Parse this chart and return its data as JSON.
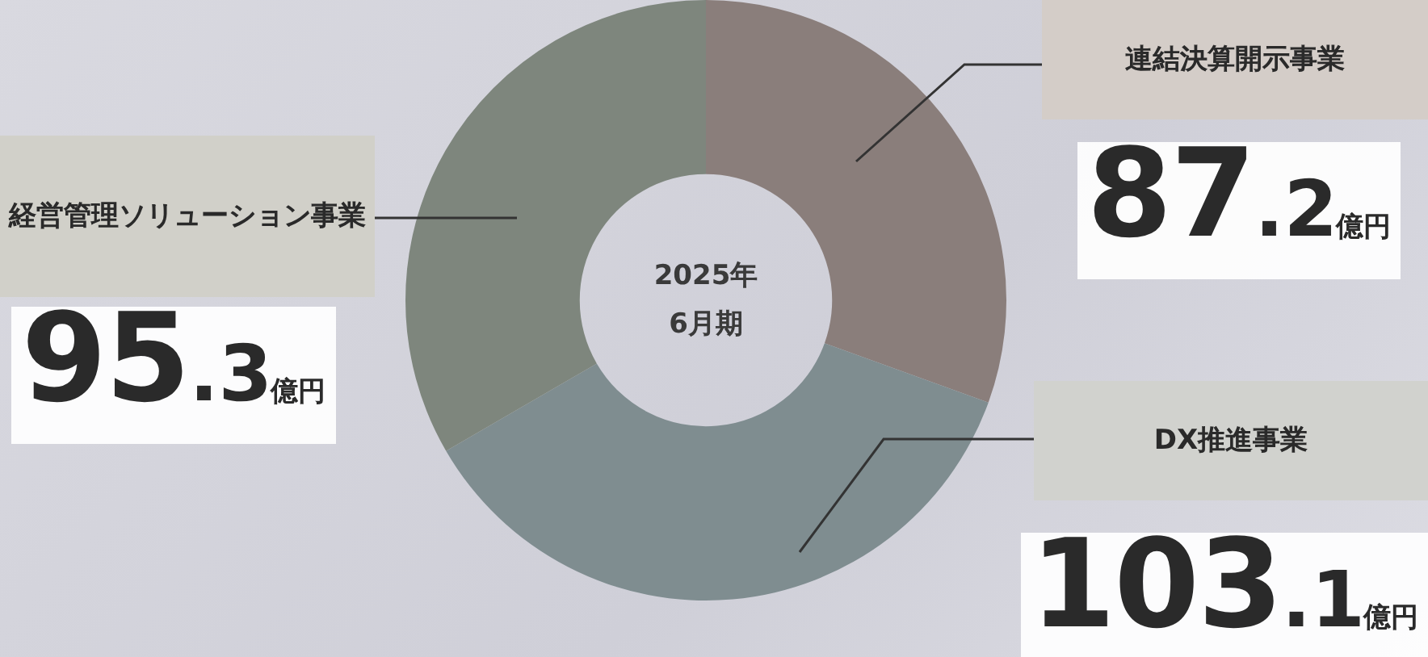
{
  "chart_data": {
    "type": "donut",
    "title": "2025年6月期",
    "categories": [
      "連結決算開示事業",
      "DX推進事業",
      "経営管理ソリューション事業"
    ],
    "values": [
      87.2,
      103.1,
      95.3
    ],
    "value_labels": [
      "87.2億円",
      "103.1億円",
      "95.3億円"
    ],
    "colors": [
      "#8a7e7b",
      "#7f8d90",
      "#7e867d"
    ],
    "legend": false
  }
}
